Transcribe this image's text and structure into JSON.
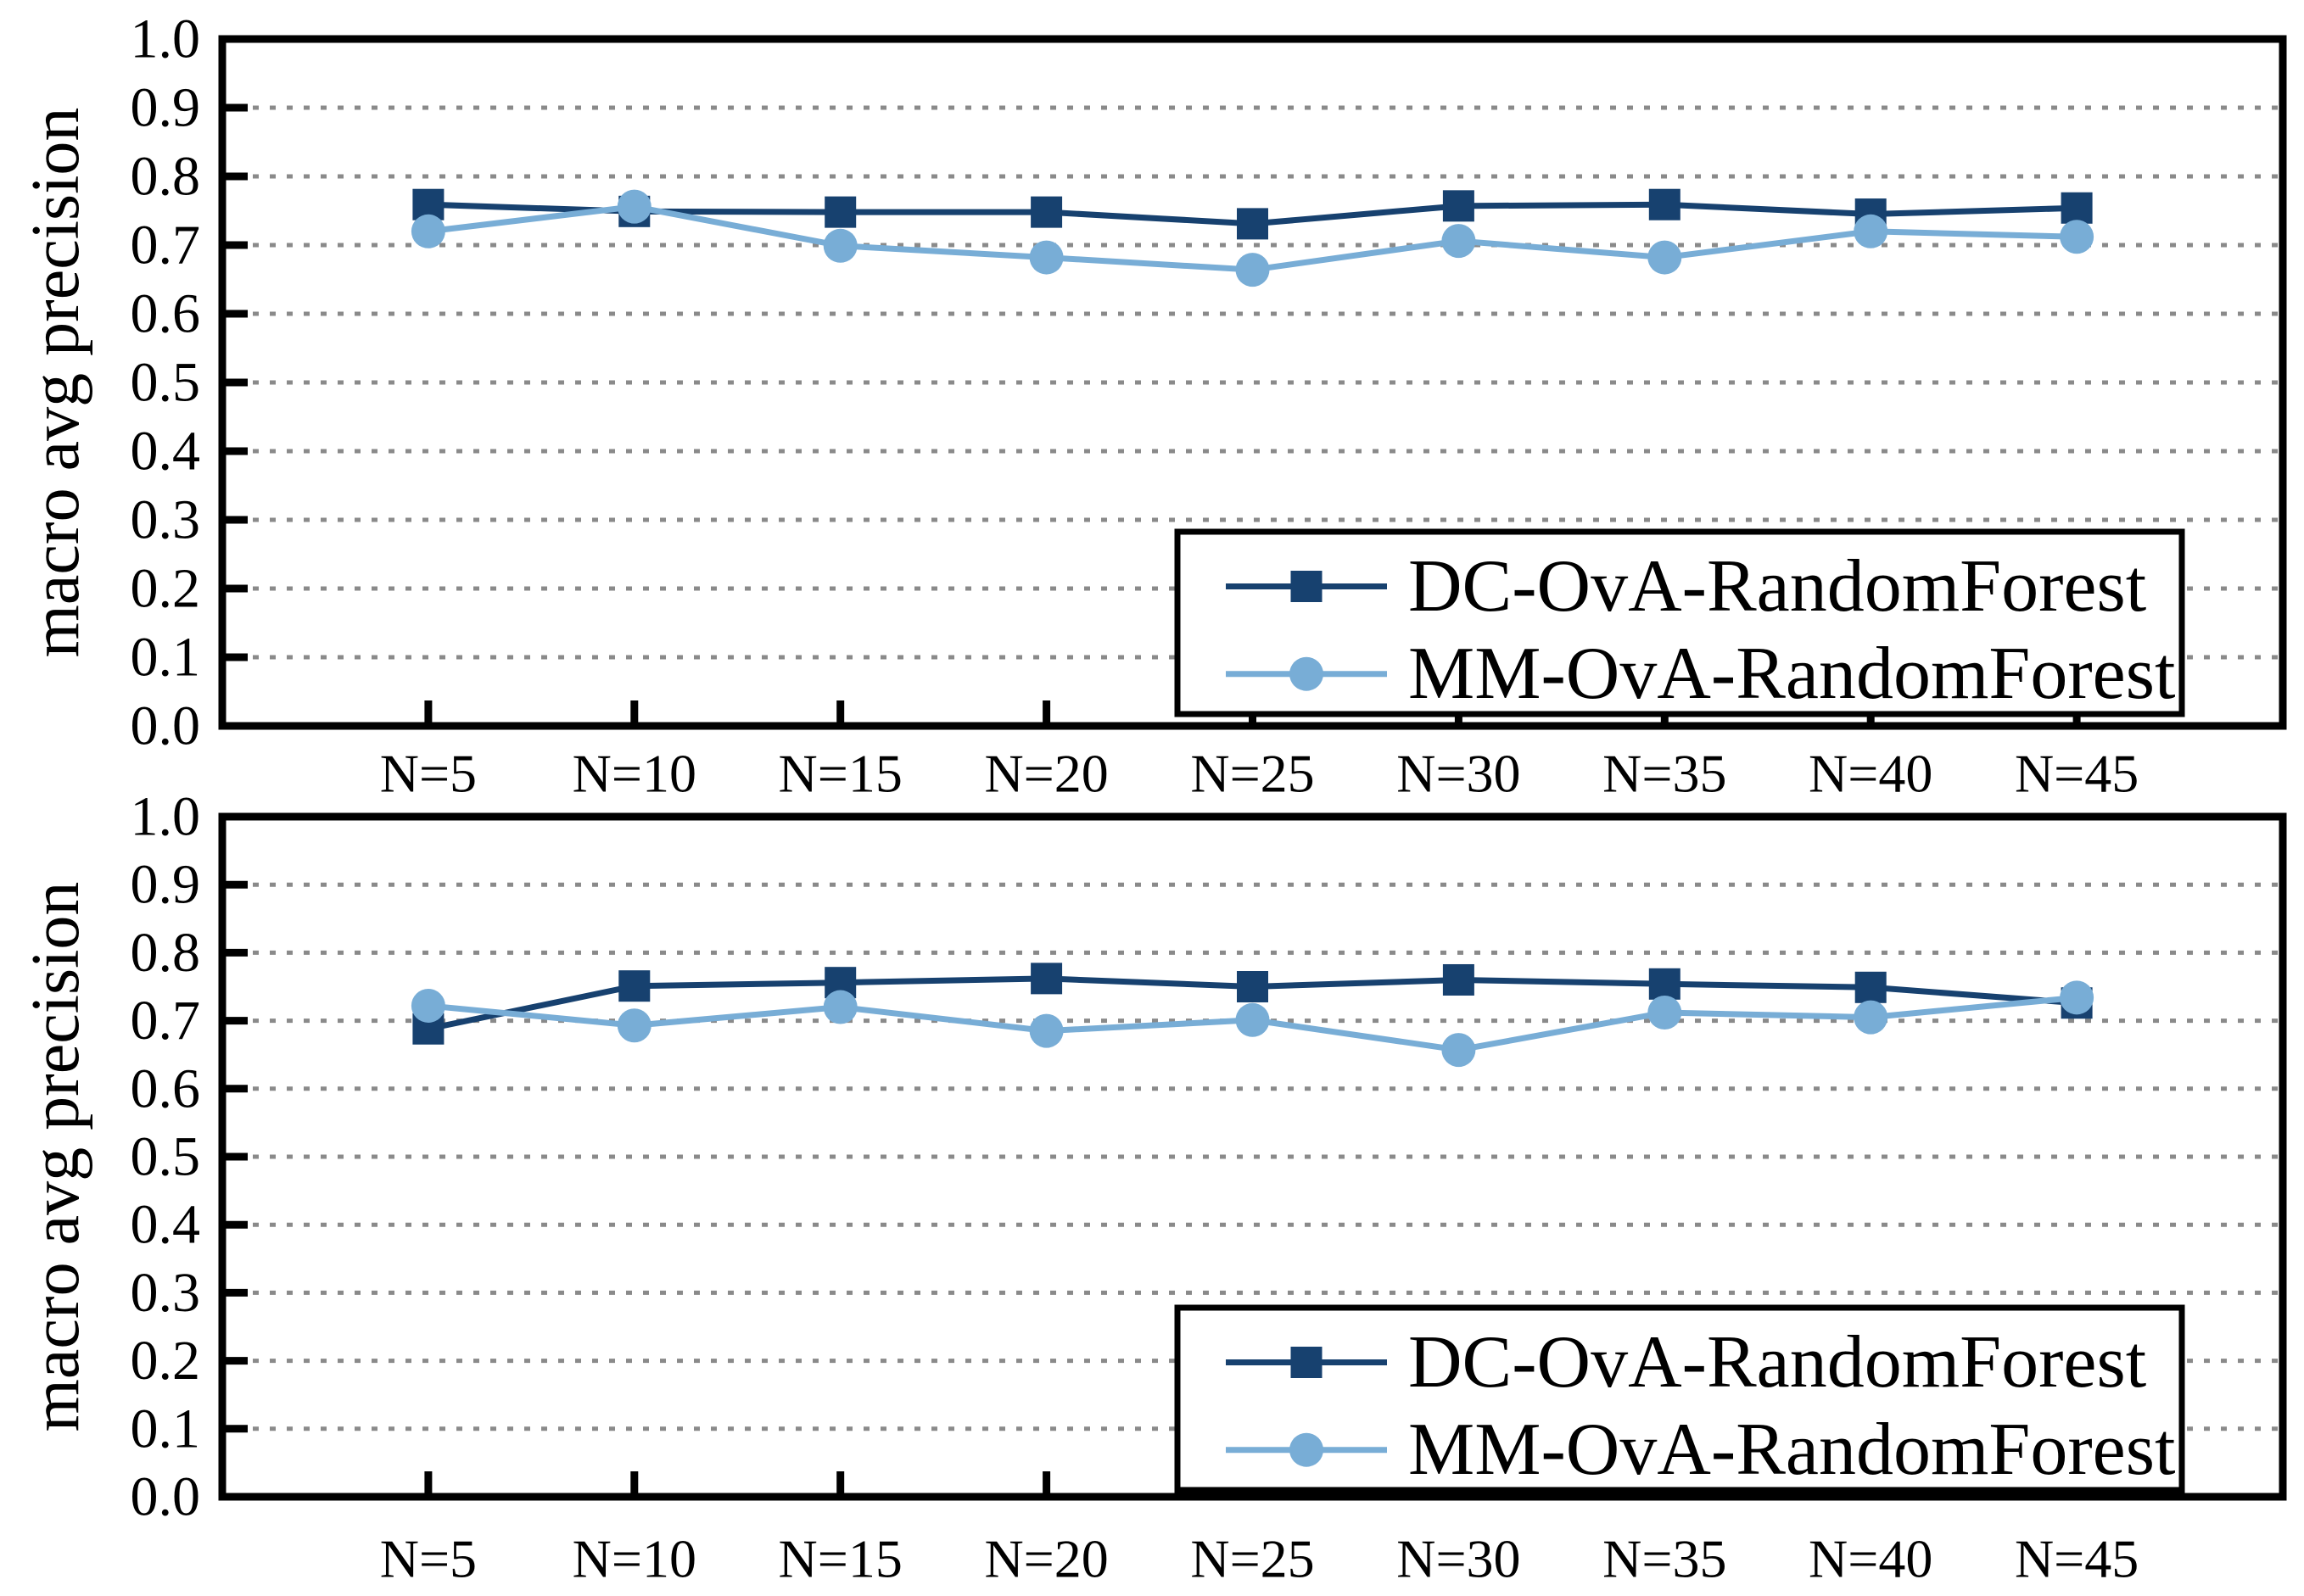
{
  "figure": {
    "background": "#ffffff",
    "axis_color": "#000000",
    "grid_color": "#8a8a8a",
    "dc_color": "#17416f",
    "mm_color": "#78add6"
  },
  "chart_data": [
    {
      "type": "line",
      "title": "",
      "xlabel": "",
      "ylabel": "macro avg precision",
      "ylim": [
        0.0,
        1.0
      ],
      "ytick_step": 0.1,
      "yticks": [
        "0.0",
        "0.1",
        "0.2",
        "0.3",
        "0.4",
        "0.5",
        "0.6",
        "0.7",
        "0.8",
        "0.9",
        "1.0"
      ],
      "grid": "horizontal dotted",
      "legend_position": "bottom-right",
      "categories": [
        "N=5",
        "N=10",
        "N=15",
        "N=20",
        "N=25",
        "N=30",
        "N=35",
        "N=40",
        "N=45"
      ],
      "series": [
        {
          "name": "DC-OvA-RandomForest",
          "marker": "square",
          "color": "#17416f",
          "values": [
            0.759,
            0.749,
            0.748,
            0.748,
            0.731,
            0.757,
            0.759,
            0.745,
            0.754
          ]
        },
        {
          "name": "MM-OvA-RandomForest",
          "marker": "circle",
          "color": "#78add6",
          "values": [
            0.72,
            0.756,
            0.699,
            0.682,
            0.664,
            0.706,
            0.682,
            0.72,
            0.712
          ]
        }
      ]
    },
    {
      "type": "line",
      "title": "",
      "xlabel": "",
      "ylabel": "macro avg precision",
      "ylim": [
        0.0,
        1.0
      ],
      "ytick_step": 0.1,
      "yticks": [
        "0.0",
        "0.1",
        "0.2",
        "0.3",
        "0.4",
        "0.5",
        "0.6",
        "0.7",
        "0.8",
        "0.9",
        "1.0"
      ],
      "grid": "horizontal dotted",
      "legend_position": "bottom-right",
      "categories": [
        "N=5",
        "N=10",
        "N=15",
        "N=20",
        "N=25",
        "N=30",
        "N=35",
        "N=40",
        "N=45"
      ],
      "series": [
        {
          "name": "DC-OvA-RandomForest",
          "marker": "square",
          "color": "#17416f",
          "values": [
            0.688,
            0.751,
            0.756,
            0.762,
            0.75,
            0.76,
            0.754,
            0.749,
            0.726
          ]
        },
        {
          "name": "MM-OvA-RandomForest",
          "marker": "circle",
          "color": "#78add6",
          "values": [
            0.722,
            0.693,
            0.72,
            0.685,
            0.701,
            0.657,
            0.712,
            0.705,
            0.734
          ]
        }
      ]
    }
  ]
}
